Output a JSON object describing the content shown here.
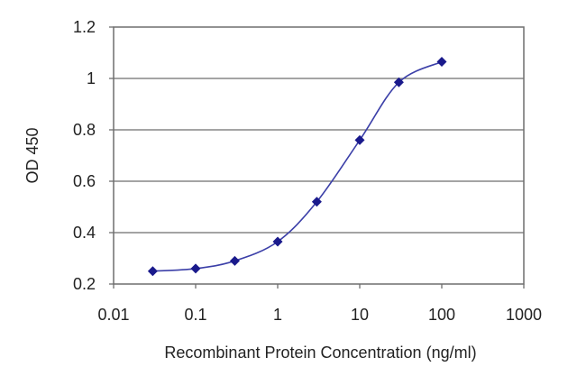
{
  "chart_data": {
    "type": "line",
    "title": "",
    "xlabel": "Recombinant Protein Concentration (ng/ml)",
    "ylabel": "OD 450",
    "x_scale": "log",
    "xlim": [
      0.01,
      1000
    ],
    "ylim": [
      0.2,
      1.2
    ],
    "x_ticks": [
      "0.01",
      "0.1",
      "1",
      "10",
      "100",
      "1000"
    ],
    "y_ticks": [
      "0.2",
      "0.4",
      "0.6",
      "0.8",
      "1",
      "1.2"
    ],
    "grid": "horizontal",
    "legend": "none",
    "series": [
      {
        "x": [
          0.03,
          0.1,
          0.3,
          1,
          3,
          10,
          30,
          100
        ],
        "y": [
          0.25,
          0.26,
          0.29,
          0.365,
          0.52,
          0.76,
          0.985,
          1.065
        ],
        "marker": "diamond",
        "color": "#1a1a8c"
      }
    ],
    "colors": {
      "line": "#3b3fa8",
      "marker": "#1a1a8c",
      "grid": "#6e6e6e",
      "frame": "#6e6e6e"
    }
  }
}
